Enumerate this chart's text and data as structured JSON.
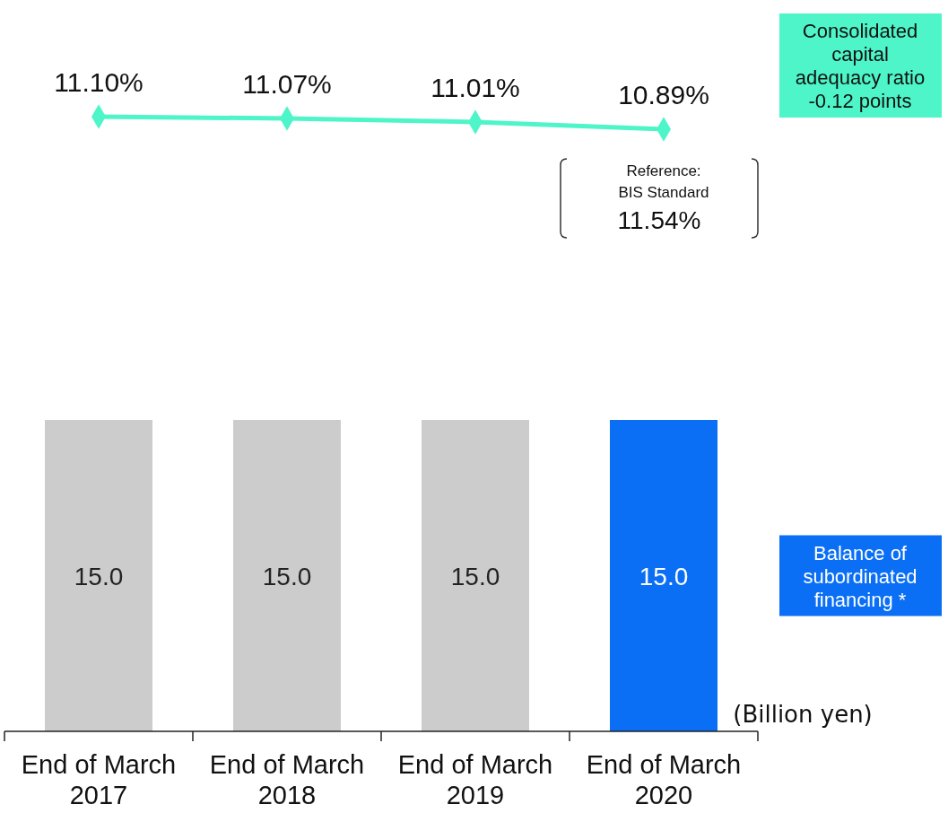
{
  "chart_data": [
    {
      "type": "line",
      "categories": [
        null,
        null,
        null,
        null
      ],
      "series": [
        {
          "name": "Consolidated capital adequacy ratio -0.12 points",
          "values": [
            11.1,
            11.07,
            11.01,
            10.89
          ],
          "value_labels": [
            "11.10%",
            "11.07%",
            "11.01%",
            "10.89%"
          ],
          "color": "#4ef5c8"
        }
      ],
      "marker": "diamond",
      "legend": "right",
      "annotations": [
        "Reference: BIS Standard 11.54%"
      ]
    },
    {
      "type": "bar",
      "categories": [
        "End of March 2017",
        "End of March 2018",
        "End of March 2019",
        "End of March 2020"
      ],
      "series": [
        {
          "name": "Balance of subordinated financing *",
          "values": [
            15.0,
            15.0,
            15.0,
            15.0
          ],
          "value_labels": [
            "15.0",
            "15.0",
            "15.0",
            "15.0"
          ],
          "colors": [
            "#cccccc",
            "#cccccc",
            "#cccccc",
            "#0a6ff5"
          ],
          "color": "#0a6ff5"
        }
      ],
      "tick_labels": "x",
      "legend": "right",
      "annotations": [
        "(Billion yen)"
      ]
    }
  ]
}
